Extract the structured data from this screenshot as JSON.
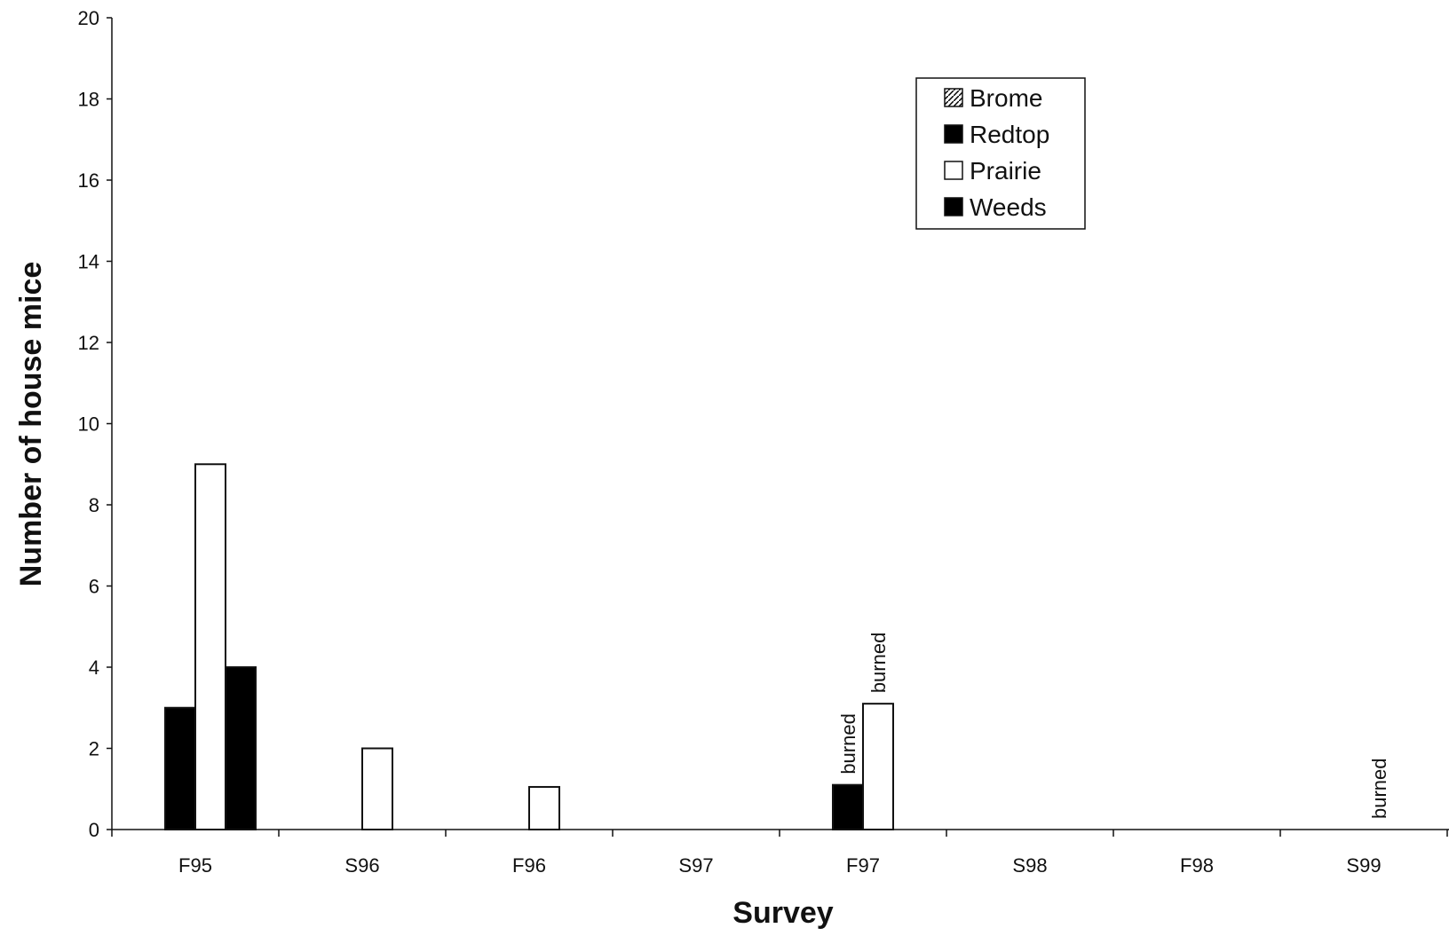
{
  "chart_data": {
    "type": "bar",
    "title": "",
    "xlabel": "Survey",
    "ylabel": "Number of house mice",
    "ylim": [
      0,
      20
    ],
    "yticks": [
      0,
      2,
      4,
      6,
      8,
      10,
      12,
      14,
      16,
      18,
      20
    ],
    "categories": [
      "F95",
      "S96",
      "F96",
      "S97",
      "F97",
      "S98",
      "F98",
      "S99"
    ],
    "series": [
      {
        "name": "Brome",
        "values": [
          0,
          0,
          0,
          0,
          0,
          0,
          0,
          0
        ],
        "color": "#000000",
        "pattern": "hatch"
      },
      {
        "name": "Redtop",
        "values": [
          3,
          0,
          0,
          0,
          1.1,
          0,
          0,
          0
        ],
        "color": "#000000",
        "pattern": "solid"
      },
      {
        "name": "Prairie",
        "values": [
          9,
          2,
          1.05,
          0,
          3.1,
          0,
          0,
          0
        ],
        "color": "#ffffff",
        "pattern": "open"
      },
      {
        "name": "Weeds",
        "values": [
          4,
          0,
          0,
          0,
          0,
          0,
          0,
          0
        ],
        "color": "#000000",
        "pattern": "solid"
      }
    ],
    "annotations": [
      {
        "text": "burned",
        "category": "F97",
        "series": "Redtop"
      },
      {
        "text": "burned",
        "category": "F97",
        "series": "Prairie"
      },
      {
        "text": "burned",
        "category": "S99",
        "series": "Prairie"
      }
    ],
    "legend": {
      "position": "top-right"
    },
    "grid": false
  }
}
